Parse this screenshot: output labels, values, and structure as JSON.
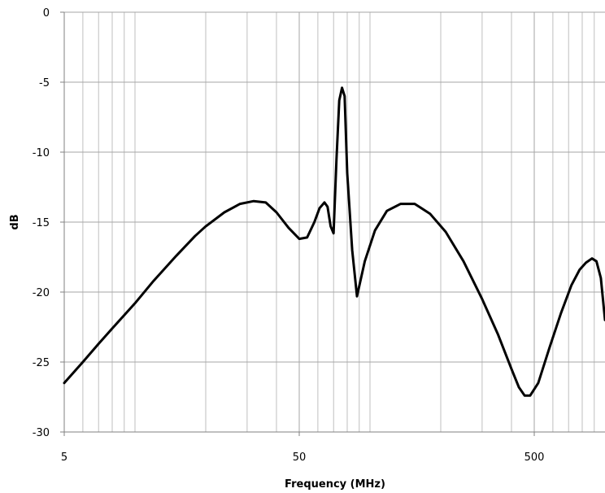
{
  "chart_data": {
    "type": "line",
    "title": "",
    "xlabel": "Frequency (MHz)",
    "ylabel": "dB",
    "xscale": "log",
    "xlim": [
      5,
      1000
    ],
    "ylim": [
      -30,
      0
    ],
    "grid": true,
    "legend": "none",
    "x_tick_labels": [
      "5",
      "50",
      "500"
    ],
    "y_tick_labels": [
      "0",
      "-5",
      "-10",
      "-15",
      "-20",
      "-25",
      "-30"
    ],
    "line_color": "#000000",
    "grid_color": "#bfbfbf",
    "series": [
      {
        "x": [
          5,
          6,
          7,
          8,
          10,
          12,
          15,
          18,
          20,
          24,
          28,
          32,
          36,
          40,
          45,
          50,
          54,
          58,
          61,
          64,
          66,
          68,
          70,
          72,
          74,
          76,
          78,
          80,
          84,
          88,
          95,
          105,
          118,
          135,
          155,
          180,
          210,
          250,
          300,
          350,
          400,
          430,
          455,
          480,
          520,
          580,
          650,
          720,
          780,
          830,
          880,
          920,
          960,
          1000
        ],
        "y": [
          -26.5,
          -25.0,
          -23.7,
          -22.6,
          -20.8,
          -19.2,
          -17.4,
          -16.0,
          -15.3,
          -14.3,
          -13.7,
          -13.5,
          -13.6,
          -14.3,
          -15.4,
          -16.2,
          -16.1,
          -15.0,
          -14.0,
          -13.6,
          -13.9,
          -15.3,
          -15.8,
          -10.5,
          -6.3,
          -5.4,
          -6.0,
          -11.5,
          -17.0,
          -20.3,
          -17.8,
          -15.6,
          -14.2,
          -13.7,
          -13.7,
          -14.4,
          -15.7,
          -17.8,
          -20.5,
          -23.0,
          -25.5,
          -26.8,
          -27.4,
          -27.4,
          -26.5,
          -24.0,
          -21.5,
          -19.5,
          -18.4,
          -17.9,
          -17.6,
          -17.8,
          -19.0,
          -22.0
        ]
      }
    ]
  }
}
